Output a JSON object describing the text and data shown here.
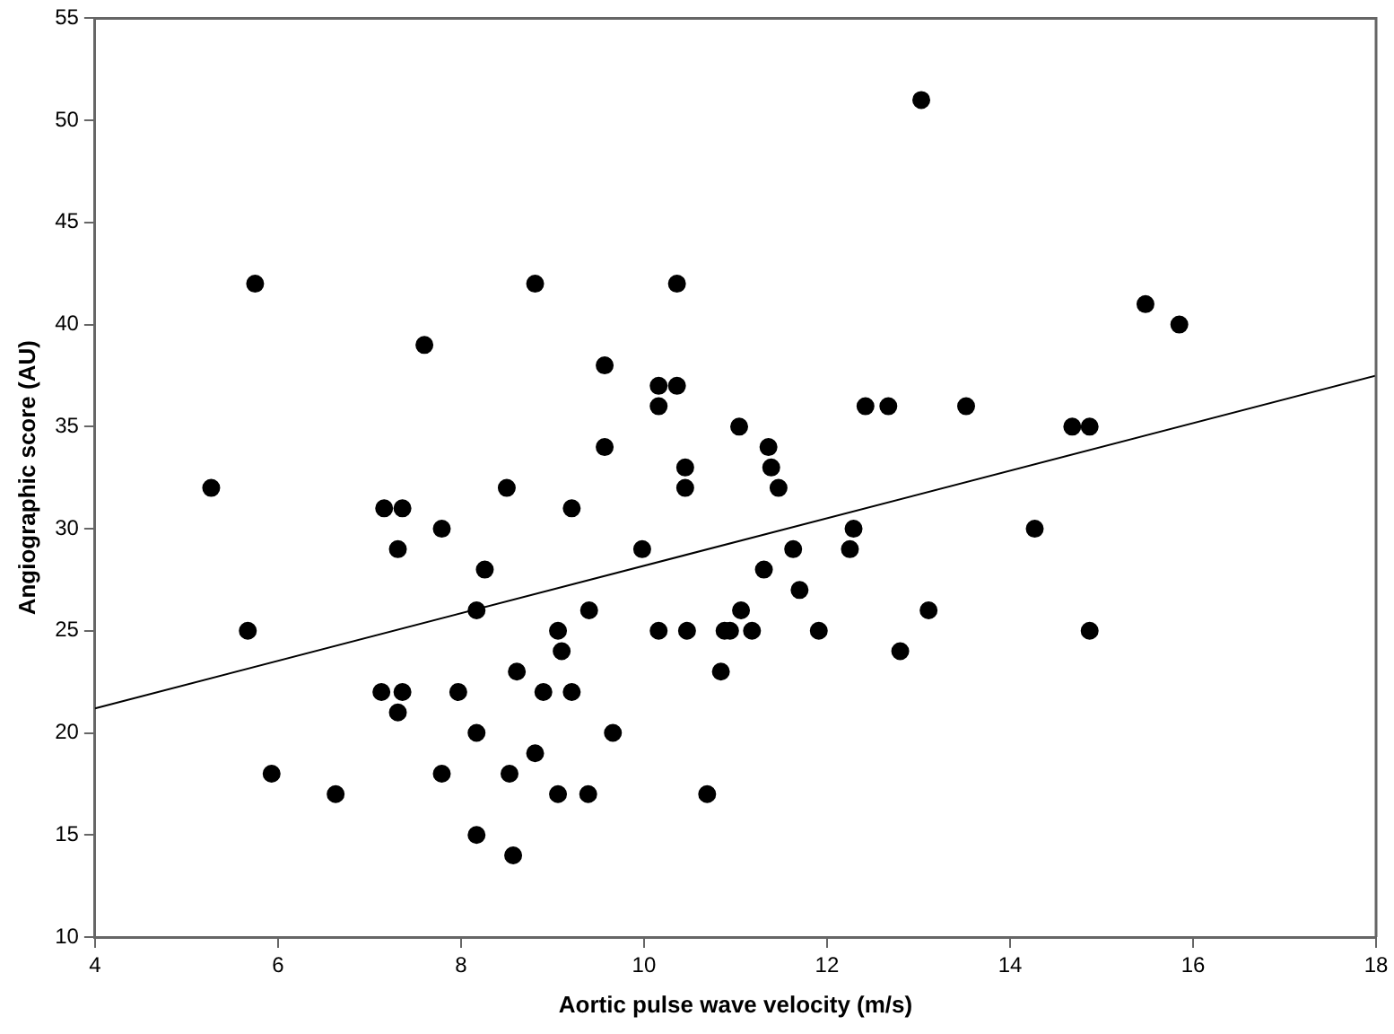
{
  "chart_data": {
    "type": "scatter",
    "xlabel": "Aortic pulse wave velocity (m/s)",
    "ylabel": "Angiographic score (AU)",
    "xlim": [
      4,
      18
    ],
    "xticks": [
      4,
      6,
      8,
      10,
      12,
      14,
      16,
      18
    ],
    "ylim": [
      10,
      55
    ],
    "yticks": [
      10,
      15,
      20,
      25,
      30,
      35,
      40,
      45,
      50,
      55
    ],
    "grid": false,
    "legend": false,
    "marker": "circle",
    "series": [
      {
        "type": "scatter",
        "color": "#000000",
        "x": [
          5.75,
          8.81,
          10.36,
          7.6,
          9.57,
          10.16,
          10.36,
          10.16,
          11.04,
          9.57,
          10.45,
          10.45,
          5.27,
          8.5,
          7.16,
          7.36,
          9.21,
          7.79,
          7.31,
          9.98,
          8.26,
          8.17,
          9.4,
          11.06,
          5.67,
          9.06,
          10.16,
          10.47,
          10.88,
          10.94,
          9.1,
          8.61,
          10.84,
          7.13,
          7.36,
          7.97,
          8.9,
          9.21,
          7.31,
          8.17,
          9.66,
          8.81,
          5.93,
          7.79,
          8.53,
          6.63,
          9.06,
          9.39,
          10.69,
          8.17,
          8.57,
          13.03,
          15.48,
          15.85,
          12.42,
          12.67,
          13.52,
          14.68,
          14.87,
          11.36,
          11.39,
          11.47,
          12.29,
          14.27,
          11.63,
          12.25,
          11.31,
          11.7,
          13.11,
          11.18,
          11.91,
          14.87,
          12.8
        ],
        "values": [
          42,
          42,
          42,
          39,
          38,
          37,
          37,
          36,
          35,
          34,
          33,
          32,
          32,
          32,
          31,
          31,
          31,
          30,
          29,
          29,
          28,
          26,
          26,
          26,
          25,
          25,
          25,
          25,
          25,
          25,
          24,
          23,
          23,
          22,
          22,
          22,
          22,
          22,
          21,
          20,
          20,
          19,
          18,
          18,
          18,
          17,
          17,
          17,
          17,
          15,
          14,
          51,
          41,
          40,
          36,
          36,
          36,
          35,
          35,
          34,
          33,
          32,
          30,
          30,
          29,
          29,
          28,
          27,
          26,
          25,
          25,
          25,
          24
        ]
      },
      {
        "type": "line",
        "color": "#000000",
        "x": [
          4,
          18
        ],
        "values": [
          21.2,
          37.5
        ],
        "marker": "none",
        "line_style": "solid"
      }
    ]
  }
}
